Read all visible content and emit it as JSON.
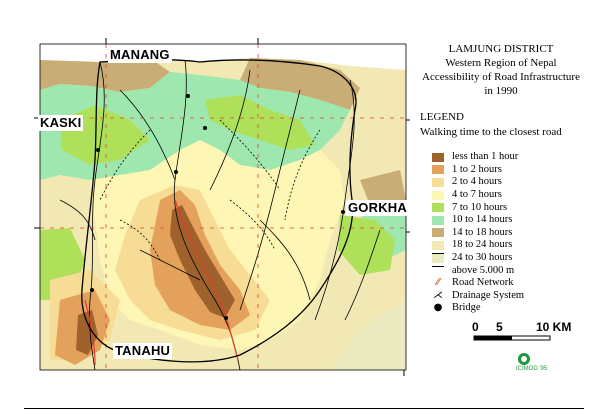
{
  "title": {
    "district": "LAMJUNG DISTRICT",
    "region": "Western Region of Nepal",
    "subject": "Accessibility of Road Infrastructure",
    "year": "in 1990"
  },
  "legend": {
    "heading": "LEGEND",
    "subheading": "Walking time to the closest road",
    "items": [
      {
        "label": "less than 1 hour",
        "color": "#a0622d"
      },
      {
        "label": "1 to 2 hours",
        "color": "#e4a15b"
      },
      {
        "label": "2 to 4 hours",
        "color": "#f6dc95"
      },
      {
        "label": "4 to 7 hours",
        "color": "#fdf6b4"
      },
      {
        "label": "7 to 10 hours",
        "color": "#aee05a"
      },
      {
        "label": "10 to 14 hours",
        "color": "#9ee8b0"
      },
      {
        "label": "14 to 18 hours",
        "color": "#c9ad76"
      },
      {
        "label": "18 to 24 hours",
        "color": "#f2e8b4"
      },
      {
        "label": "24 to 30 hours",
        "color": "#ebeac0"
      },
      {
        "label": "above 5.000 m",
        "color": "#ffffff"
      }
    ],
    "symbols": [
      {
        "label": "Road Network",
        "icon": "road-line"
      },
      {
        "label": "Drainage System",
        "icon": "river-line"
      },
      {
        "label": "Bridge",
        "icon": "bridge-dot"
      }
    ]
  },
  "neighbors": {
    "north": "MANANG",
    "west": "KASKI",
    "east": "GORKHA",
    "south": "TANAHU"
  },
  "scale_bar": {
    "tick_0": "0",
    "tick_5": "5",
    "tick_10": "10 KM"
  },
  "credit": {
    "label": "ICIMOD '95"
  },
  "colors": {
    "road": "#e0402a",
    "drainage": "#000000",
    "boundary": "#000000"
  }
}
